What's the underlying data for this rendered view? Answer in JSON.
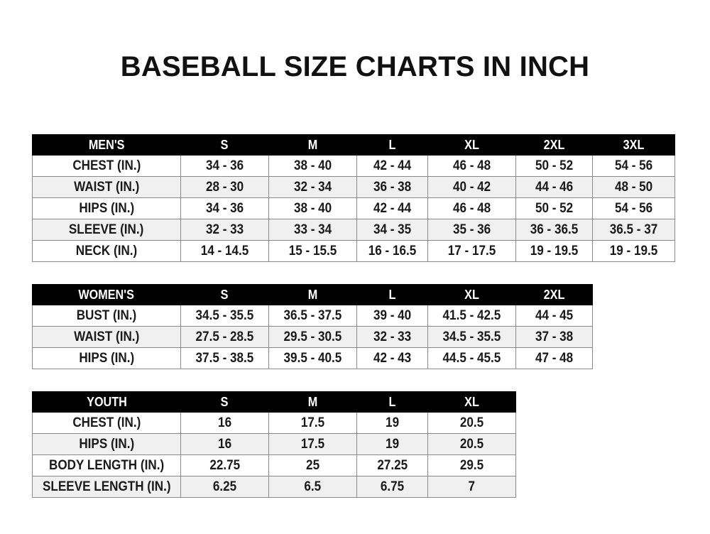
{
  "title": "BASEBALL SIZE CHARTS IN INCH",
  "tables": [
    {
      "name": "mens",
      "headers": [
        "MEN'S",
        "S",
        "M",
        "L",
        "XL",
        "2XL",
        "3XL"
      ],
      "rows": [
        [
          "CHEST (IN.)",
          "34 - 36",
          "38 - 40",
          "42 - 44",
          "46 - 48",
          "50 - 52",
          "54 - 56"
        ],
        [
          "WAIST (IN.)",
          "28 - 30",
          "32 - 34",
          "36 - 38",
          "40 - 42",
          "44 - 46",
          "48 - 50"
        ],
        [
          "HIPS (IN.)",
          "34 - 36",
          "38 - 40",
          "42 - 44",
          "46 - 48",
          "50 - 52",
          "54 - 56"
        ],
        [
          "SLEEVE (IN.)",
          "32 - 33",
          "33 - 34",
          "34 - 35",
          "35 - 36",
          "36 - 36.5",
          "36.5 - 37"
        ],
        [
          "NECK (IN.)",
          "14 - 14.5",
          "15 - 15.5",
          "16 - 16.5",
          "17 - 17.5",
          "19 - 19.5",
          "19 - 19.5"
        ]
      ]
    },
    {
      "name": "womens",
      "headers": [
        "WOMEN'S",
        "S",
        "M",
        "L",
        "XL",
        "2XL"
      ],
      "rows": [
        [
          "BUST (IN.)",
          "34.5 - 35.5",
          "36.5 - 37.5",
          "39 - 40",
          "41.5 - 42.5",
          "44 - 45"
        ],
        [
          "WAIST (IN.)",
          "27.5 - 28.5",
          "29.5 - 30.5",
          "32 - 33",
          "34.5 - 35.5",
          "37 - 38"
        ],
        [
          "HIPS (IN.)",
          "37.5 - 38.5",
          "39.5 - 40.5",
          "42 - 43",
          "44.5 - 45.5",
          "47 - 48"
        ]
      ]
    },
    {
      "name": "youth",
      "headers": [
        "YOUTH",
        "S",
        "M",
        "L",
        "XL"
      ],
      "rows": [
        [
          "CHEST (IN.)",
          "16",
          "17.5",
          "19",
          "20.5"
        ],
        [
          "HIPS (IN.)",
          "16",
          "17.5",
          "19",
          "20.5"
        ],
        [
          "BODY LENGTH (IN.)",
          "22.75",
          "25",
          "27.25",
          "29.5"
        ],
        [
          "SLEEVE LENGTH (IN.)",
          "6.25",
          "6.5",
          "6.75",
          "7"
        ]
      ]
    }
  ]
}
